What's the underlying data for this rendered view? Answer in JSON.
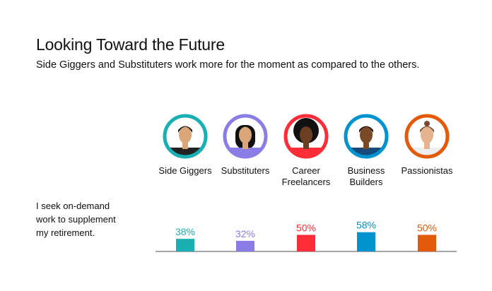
{
  "title": "Looking Toward the Future",
  "subtitle": "Side Giggers and Substituters work more for the moment as compared to the others.",
  "chart_data": {
    "type": "bar",
    "categories": [
      "Side Giggers",
      "Substituters",
      "Career Freelancers",
      "Business Builders",
      "Passionistas"
    ],
    "category_lines": [
      [
        "Side Giggers"
      ],
      [
        "Substituters"
      ],
      [
        "Career",
        "Freelancers"
      ],
      [
        "Business",
        "Builders"
      ],
      [
        "Passionistas"
      ]
    ],
    "question": [
      "I seek on-demand",
      "work to supplement",
      "my retirement."
    ],
    "values": [
      38,
      32,
      50,
      58,
      50
    ],
    "value_labels": [
      "38%",
      "32%",
      "50%",
      "58%",
      "50%"
    ],
    "colors": [
      "#1aafb3",
      "#8a7ee6",
      "#ff2d38",
      "#0093cf",
      "#e35a0a"
    ],
    "icons": [
      "man-glasses-avatar",
      "woman-sunglasses-avatar",
      "afro-woman-avatar",
      "businessman-avatar",
      "woman-bun-avatar"
    ],
    "ylim": [
      0,
      100
    ],
    "grid": false
  }
}
